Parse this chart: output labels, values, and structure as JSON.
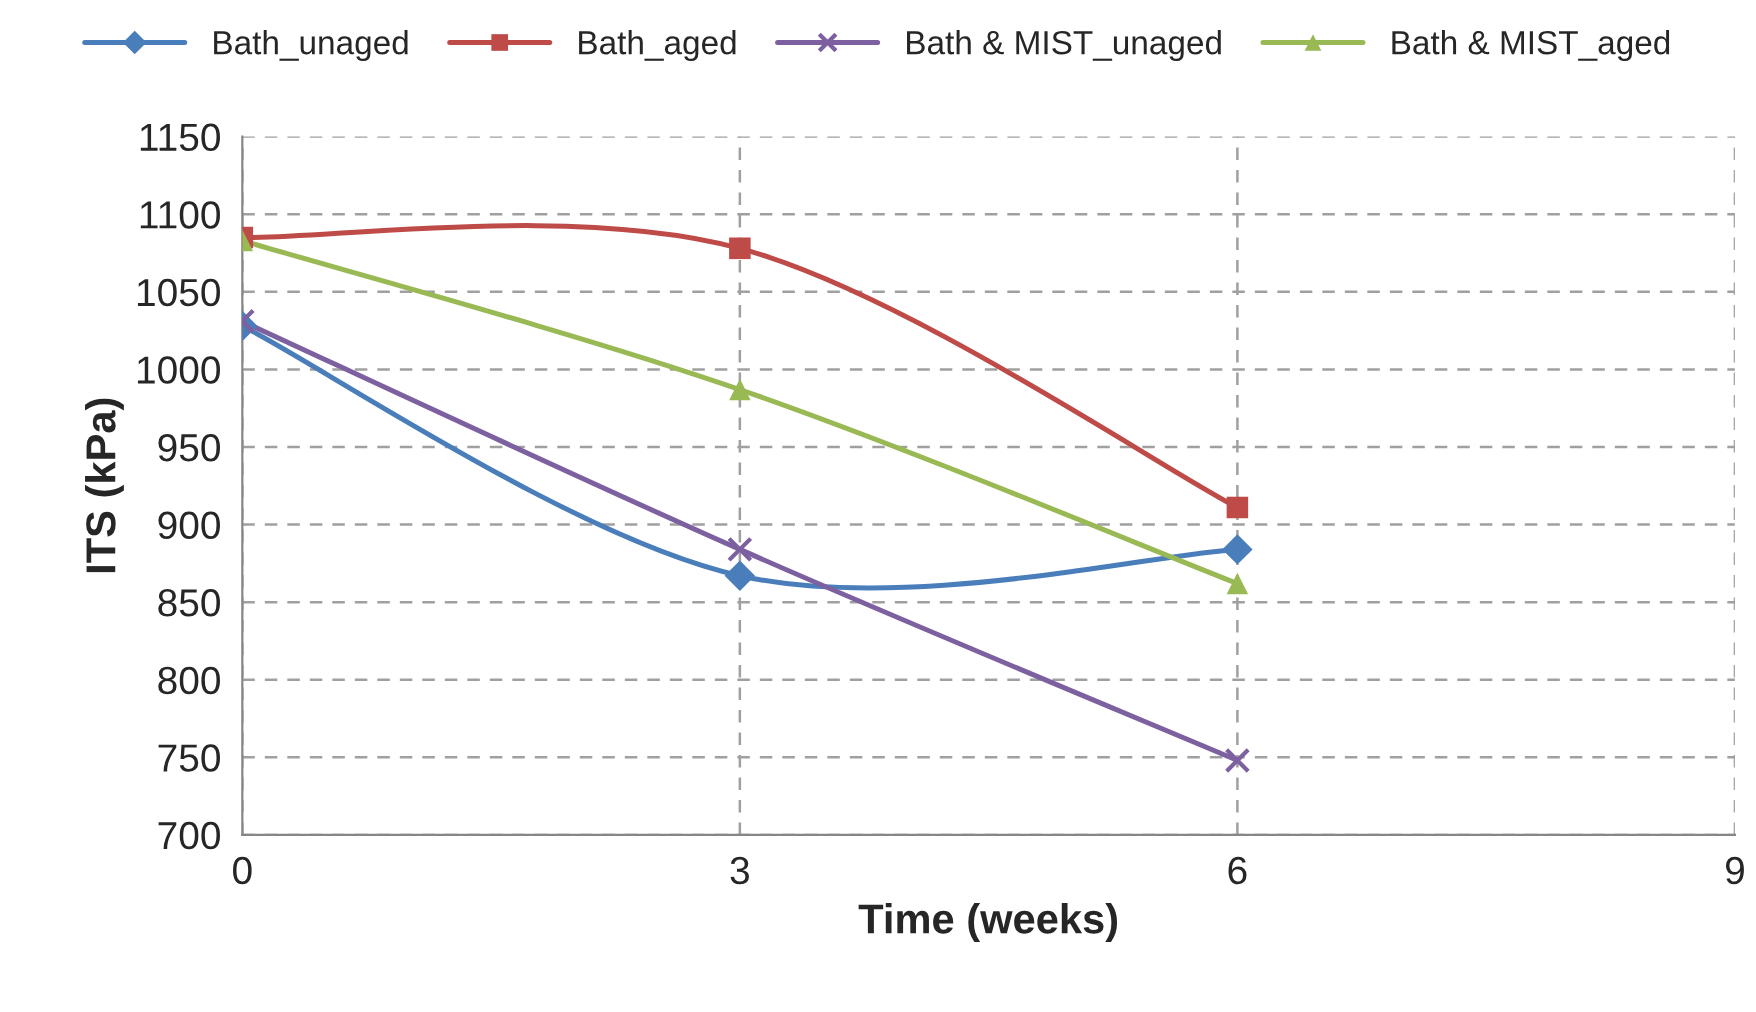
{
  "chart_data": {
    "type": "line",
    "xlabel": "Time (weeks)",
    "ylabel": "ITS (kPa)",
    "x": [
      0,
      3,
      6
    ],
    "series": [
      {
        "name": "Bath_unaged",
        "color": "#4a7ebb",
        "marker": "diamond",
        "values": [
          1028,
          867,
          884
        ]
      },
      {
        "name": "Bath_aged",
        "color": "#be4b48",
        "marker": "square",
        "values": [
          1085,
          1078,
          911
        ]
      },
      {
        "name": "Bath & MIST_unaged",
        "color": "#7d60a0",
        "marker": "cross",
        "values": [
          1031,
          884,
          748
        ]
      },
      {
        "name": "Bath & MIST_aged",
        "color": "#98b954",
        "marker": "triangle",
        "values": [
          1083,
          987,
          862
        ]
      }
    ],
    "xlim": [
      0,
      9
    ],
    "xticks": [
      0,
      3,
      6,
      9
    ],
    "ylim": [
      700,
      1150
    ],
    "yticks": [
      700,
      750,
      800,
      850,
      900,
      950,
      1000,
      1050,
      1100,
      1150
    ],
    "grid": true,
    "legend": "top",
    "line_style": "solid"
  }
}
